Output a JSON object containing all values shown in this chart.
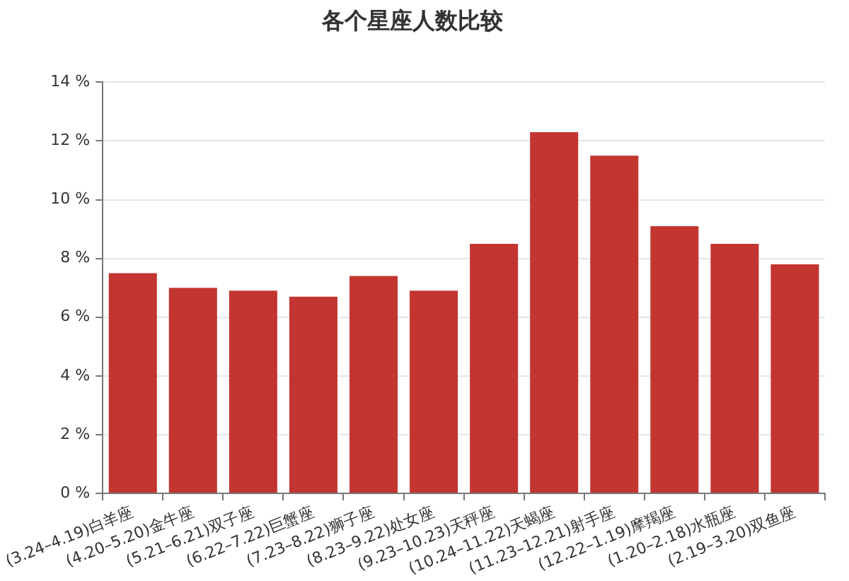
{
  "chart_data": {
    "type": "bar",
    "title": "各个星座人数比较",
    "categories": [
      "(3.24–4.19)白羊座",
      "(4.20–5.20)金牛座",
      "(5.21–6.21)双子座",
      "(6.22–7.22)巨蟹座",
      "(7.23–8.22)狮子座",
      "(8.23–9.22)处女座",
      "(9.23–10.23)天秤座",
      "(10.24–11.22)天蝎座",
      "(11.23–12.21)射手座",
      "(12.22–1.19)摩羯座",
      "(1.20–2.18)水瓶座",
      "(2.19–3.20)双鱼座"
    ],
    "values": [
      7.5,
      7.0,
      6.9,
      6.7,
      7.4,
      6.9,
      8.5,
      12.3,
      11.5,
      9.1,
      8.5,
      7.8
    ],
    "color": "#c23531",
    "ylim": [
      0,
      14
    ],
    "yticks": [
      {
        "value": 0,
        "label": "0 %"
      },
      {
        "value": 2,
        "label": "2 %"
      },
      {
        "value": 4,
        "label": "4 %"
      },
      {
        "value": 6,
        "label": "6 %"
      },
      {
        "value": 8,
        "label": "8 %"
      },
      {
        "value": 10,
        "label": "10 %"
      },
      {
        "value": 12,
        "label": "12 %"
      },
      {
        "value": 14,
        "label": "14 %"
      }
    ],
    "grid": "y"
  }
}
